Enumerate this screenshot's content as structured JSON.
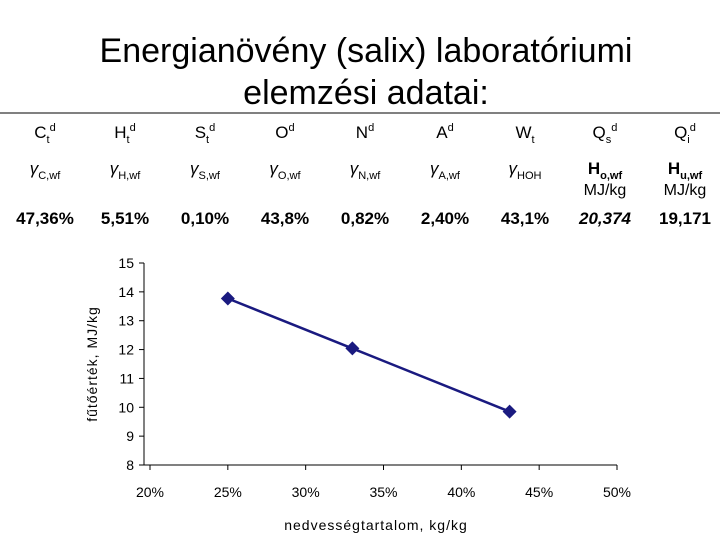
{
  "title": [
    "Energianövény (salix) laboratóriumi",
    "elemzési adatai:"
  ],
  "table": {
    "header": [
      {
        "base": "C",
        "sub": "t",
        "sup": "d"
      },
      {
        "base": "H",
        "sub": "t",
        "sup": "d"
      },
      {
        "base": "S",
        "sub": "t",
        "sup": "d"
      },
      {
        "base": "O",
        "sup": "d"
      },
      {
        "base": "N",
        "sup": "d"
      },
      {
        "base": "A",
        "sup": "d"
      },
      {
        "base": "W",
        "sub": "t"
      },
      {
        "base": "Q",
        "sub": "s",
        "sup": "d"
      },
      {
        "base": "Q",
        "sub": "i",
        "sup": "d"
      }
    ],
    "symbols": [
      {
        "base": "γ",
        "sub": "C,wf"
      },
      {
        "base": "γ",
        "sub": "H,wf"
      },
      {
        "base": "γ",
        "sub": "S,wf"
      },
      {
        "base": "γ",
        "sub": "O,wf"
      },
      {
        "base": "γ",
        "sub": "N,wf"
      },
      {
        "base": "γ",
        "sub": "A,wf"
      },
      {
        "base": "γ",
        "sub": "HOH"
      },
      {
        "base": "H",
        "sub": "o,wf",
        "unit": "MJ/kg"
      },
      {
        "base": "H",
        "sub": "u,wf",
        "unit": "MJ/kg"
      }
    ],
    "values": [
      "47,36%",
      "5,51%",
      "0,10%",
      "43,8%",
      "0,82%",
      "2,40%",
      "43,1%",
      "20,374",
      "19,171"
    ],
    "highlight": {
      "index": 7,
      "color": "#ff0000"
    }
  },
  "chart_data": {
    "type": "line",
    "x_label": "nedvességtartalom, kg/kg",
    "y_label": "fűtőérték, MJ/kg",
    "x": [
      0.25,
      0.33,
      0.431
    ],
    "series": [
      {
        "color": "#1a1a80",
        "values": [
          13.77,
          12.04,
          9.85
        ]
      }
    ],
    "xlim": [
      0.2,
      0.5
    ],
    "xticks": [
      {
        "value": 0.2,
        "label": "20%"
      },
      {
        "value": 0.25,
        "label": "25%"
      },
      {
        "value": 0.3,
        "label": "30%"
      },
      {
        "value": 0.35,
        "label": "35%"
      },
      {
        "value": 0.4,
        "label": "40%"
      },
      {
        "value": 0.45,
        "label": "45%"
      },
      {
        "value": 0.5,
        "label": "50%"
      }
    ],
    "ylim": [
      8,
      15
    ],
    "yticks": [
      8,
      9,
      10,
      11,
      12,
      13,
      14,
      15
    ]
  }
}
